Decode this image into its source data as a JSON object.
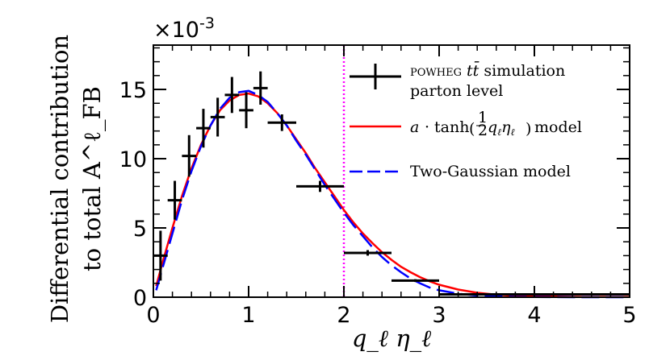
{
  "chart_data": {
    "type": "line",
    "title": "",
    "xlabel": "q_ℓ η_ℓ",
    "ylabel_line1": "Differential contribution",
    "ylabel_line2": "to total A^ℓ_FB",
    "y_multiplier": "×10",
    "y_multiplier_exp": "-3",
    "xlim": [
      0,
      5
    ],
    "ylim": [
      0,
      18.2
    ],
    "x_ticks": [
      0,
      1,
      2,
      3,
      4,
      5
    ],
    "y_ticks": [
      0,
      5,
      10,
      15
    ],
    "vline": {
      "x": 2.0,
      "color": "#ff00ff",
      "style": "dotted"
    },
    "series": [
      {
        "name": "POWHEG tt̄ simulation parton level",
        "kind": "errorbar",
        "color": "#000000",
        "points": [
          {
            "x": 0.075,
            "y": 3.0,
            "xerr": 0.075,
            "yerr": 1.8
          },
          {
            "x": 0.225,
            "y": 7.0,
            "xerr": 0.075,
            "yerr": 1.4
          },
          {
            "x": 0.375,
            "y": 10.2,
            "xerr": 0.075,
            "yerr": 1.5
          },
          {
            "x": 0.525,
            "y": 12.2,
            "xerr": 0.075,
            "yerr": 1.4
          },
          {
            "x": 0.675,
            "y": 13.0,
            "xerr": 0.075,
            "yerr": 1.4
          },
          {
            "x": 0.825,
            "y": 14.6,
            "xerr": 0.075,
            "yerr": 1.3
          },
          {
            "x": 0.975,
            "y": 13.5,
            "xerr": 0.075,
            "yerr": 1.3
          },
          {
            "x": 1.125,
            "y": 15.1,
            "xerr": 0.075,
            "yerr": 1.2
          },
          {
            "x": 1.35,
            "y": 12.6,
            "xerr": 0.15,
            "yerr": 0.6
          },
          {
            "x": 1.75,
            "y": 8.0,
            "xerr": 0.25,
            "yerr": 0.4
          },
          {
            "x": 2.25,
            "y": 3.2,
            "xerr": 0.25,
            "yerr": 0.2
          },
          {
            "x": 2.75,
            "y": 1.2,
            "xerr": 0.25,
            "yerr": 0.1
          },
          {
            "x": 4.0,
            "y": 0.2,
            "xerr": 1.0,
            "yerr": 0.05
          }
        ]
      },
      {
        "name": "a · tanh(½ q_ℓ η_ℓ) model",
        "kind": "line",
        "color": "#ff0000",
        "dash": "solid",
        "x": [
          0.03,
          0.1,
          0.2,
          0.3,
          0.4,
          0.5,
          0.6,
          0.7,
          0.8,
          0.9,
          1.0,
          1.1,
          1.2,
          1.3,
          1.4,
          1.5,
          1.6,
          1.7,
          1.8,
          1.9,
          2.0,
          2.1,
          2.2,
          2.3,
          2.4,
          2.5,
          2.6,
          2.7,
          2.8,
          2.9,
          3.0,
          3.2,
          3.4,
          3.6,
          3.8,
          4.0,
          4.5,
          5.0
        ],
        "y": [
          0.8,
          2.6,
          5.0,
          7.3,
          9.3,
          11.0,
          12.4,
          13.5,
          14.2,
          14.6,
          14.7,
          14.5,
          14.0,
          13.3,
          12.4,
          11.4,
          10.4,
          9.3,
          8.3,
          7.3,
          6.3,
          5.4,
          4.6,
          3.9,
          3.25,
          2.7,
          2.2,
          1.8,
          1.45,
          1.15,
          0.9,
          0.55,
          0.32,
          0.18,
          0.1,
          0.06,
          0.02,
          0.01
        ]
      },
      {
        "name": "Two-Gaussian model",
        "kind": "line",
        "color": "#0000ff",
        "dash": "dashed",
        "x": [
          0.03,
          0.1,
          0.2,
          0.3,
          0.4,
          0.5,
          0.6,
          0.7,
          0.8,
          0.9,
          1.0,
          1.1,
          1.2,
          1.3,
          1.4,
          1.5,
          1.6,
          1.7,
          1.8,
          1.9,
          2.0,
          2.1,
          2.2,
          2.3,
          2.4,
          2.5,
          2.6,
          2.7,
          2.8,
          2.9,
          3.0,
          3.2,
          3.4,
          3.6,
          3.8,
          4.0,
          4.5,
          5.0
        ],
        "y": [
          0.5,
          2.2,
          4.6,
          7.0,
          9.1,
          10.9,
          12.4,
          13.6,
          14.4,
          14.8,
          14.9,
          14.6,
          14.1,
          13.3,
          12.4,
          11.3,
          10.3,
          9.2,
          8.1,
          7.1,
          6.1,
          5.2,
          4.4,
          3.6,
          2.9,
          2.3,
          1.8,
          1.35,
          1.0,
          0.7,
          0.5,
          0.25,
          0.12,
          0.05,
          0.02,
          0.01,
          0.0,
          0.0
        ]
      }
    ],
    "legend": {
      "position": "top-right",
      "entries": [
        {
          "prefix_sc": "powheg",
          "math": "tt̄",
          "rest": " simulation",
          "line2": "parton level"
        },
        {
          "text": " model"
        },
        {
          "text": "Two-Gaussian model"
        }
      ]
    }
  }
}
